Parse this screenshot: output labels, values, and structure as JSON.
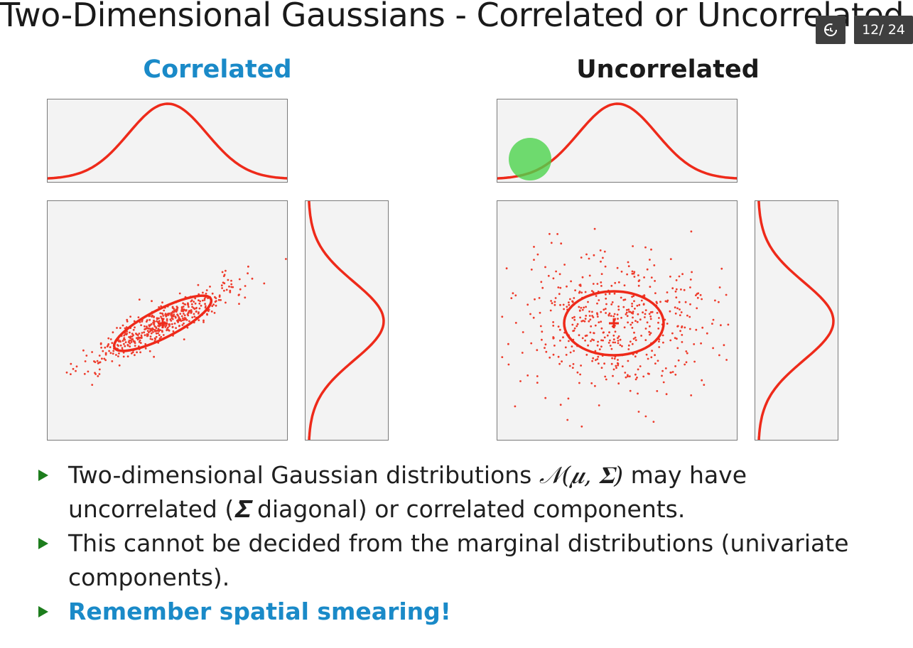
{
  "slide": {
    "title": "Two-Dimensional Gaussians - Correlated or Uncorrelated"
  },
  "player": {
    "replay_icon": "replay-icon",
    "page_counter": "12/ 24"
  },
  "panels": {
    "correlated": {
      "heading": "Correlated",
      "heading_color": "#1a8ac8"
    },
    "uncorrelated": {
      "heading": "Uncorrelated",
      "heading_color": "#1a1a1a"
    }
  },
  "colors": {
    "curve": "#ee2a1a",
    "points": "#ee3a2a",
    "box_bg": "#f3f3f3",
    "cursor_highlight": "#4cd34c",
    "bullet_marker": "#1d7d1d",
    "accent": "#1a8ac8"
  },
  "bullets": {
    "b1_pre": "Two-dimensional Gaussian distributions ",
    "b1_math": "𝒩(𝝁, 𝚺)",
    "b1_mid": " may have uncorrelated (",
    "b1_sigma": "𝚺",
    "b1_post": " diagonal) or correlated components.",
    "b2": "This cannot be decided from the marginal distributions (univariate components).",
    "b3": "Remember spatial smearing!"
  }
}
